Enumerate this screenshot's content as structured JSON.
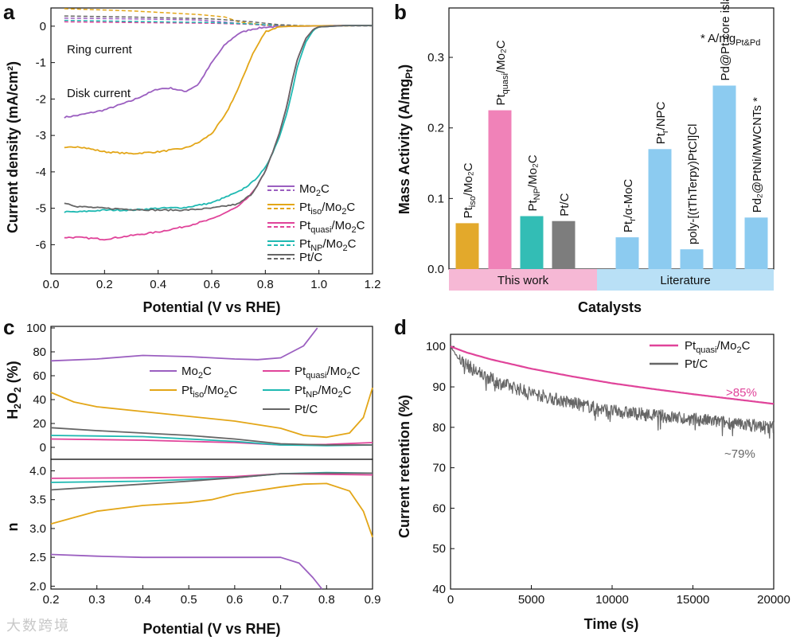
{
  "colors": {
    "mo2c": "#9b5fc0",
    "pt_iso": "#e3a618",
    "pt_quasi": "#e0449a",
    "pt_np": "#1fb9b2",
    "ptc": "#666666",
    "bar_orange": "#e3a92b",
    "bar_pink": "#f082b8",
    "bar_teal": "#33bdb5",
    "bar_gray": "#7d7d7d",
    "bar_blue": "#8ccbf0",
    "band_pink": "#f6b8d5",
    "band_blue": "#b9e0f6"
  },
  "watermark": "大数跨境",
  "chart_data": [
    {
      "panel": "a",
      "type": "line",
      "xlabel": "Potential (V vs RHE)",
      "ylabel": "Current density (mA/cm²)",
      "xlim": [
        0.0,
        1.2
      ],
      "ylim": [
        -6.8,
        0.5
      ],
      "xticks": [
        "0.0",
        "0.2",
        "0.4",
        "0.6",
        "0.8",
        "1.0",
        "1.2"
      ],
      "yticks": [
        "0",
        "-1",
        "-2",
        "-3",
        "-4",
        "-5",
        "-6"
      ],
      "annotations": [
        "Ring current",
        "Disk current"
      ],
      "legend": [
        "Mo₂C",
        "Pt_iso/Mo₂C",
        "Pt_quasi/Mo₂C",
        "Pt_NP/Mo₂C",
        "Pt/C"
      ],
      "series": [
        {
          "name": "Mo₂C",
          "x": [
            0.05,
            0.1,
            0.2,
            0.3,
            0.4,
            0.45,
            0.5,
            0.55,
            0.6,
            0.65,
            0.7,
            0.75,
            0.8,
            0.85,
            0.9,
            0.95,
            1.0,
            1.1,
            1.2
          ],
          "y": [
            -2.5,
            -2.45,
            -2.3,
            -2.05,
            -1.72,
            -1.7,
            -1.8,
            -1.6,
            -1.0,
            -0.5,
            -0.2,
            -0.08,
            -0.03,
            -0.01,
            0.0,
            0.0,
            0.01,
            0.02,
            0.02
          ]
        },
        {
          "name": "Pt_iso/Mo₂C",
          "x": [
            0.05,
            0.1,
            0.2,
            0.3,
            0.4,
            0.5,
            0.55,
            0.6,
            0.65,
            0.7,
            0.75,
            0.8,
            0.85,
            0.9,
            1.0,
            1.2
          ],
          "y": [
            -3.35,
            -3.3,
            -3.45,
            -3.5,
            -3.45,
            -3.35,
            -3.2,
            -2.95,
            -2.45,
            -1.7,
            -0.8,
            -0.15,
            -0.02,
            0.0,
            0.01,
            0.02
          ]
        },
        {
          "name": "Pt_quasi/Mo₂C",
          "x": [
            0.05,
            0.1,
            0.2,
            0.3,
            0.4,
            0.5,
            0.6,
            0.7,
            0.75,
            0.8,
            0.85,
            0.88,
            0.9,
            0.92,
            0.95,
            0.98,
            1.0,
            1.1,
            1.2
          ],
          "y": [
            -5.8,
            -5.8,
            -5.85,
            -5.75,
            -5.65,
            -5.5,
            -5.3,
            -4.95,
            -4.6,
            -4.0,
            -3.0,
            -2.2,
            -1.5,
            -0.9,
            -0.35,
            -0.08,
            -0.02,
            0.02,
            0.02
          ]
        },
        {
          "name": "Pt_NP/Mo₂C",
          "x": [
            0.05,
            0.1,
            0.2,
            0.3,
            0.4,
            0.5,
            0.6,
            0.7,
            0.75,
            0.8,
            0.85,
            0.88,
            0.9,
            0.92,
            0.95,
            0.98,
            1.0,
            1.1,
            1.2
          ],
          "y": [
            -5.1,
            -5.1,
            -5.05,
            -5.05,
            -5.0,
            -4.98,
            -4.85,
            -4.55,
            -4.3,
            -3.9,
            -3.1,
            -2.4,
            -1.8,
            -1.1,
            -0.45,
            -0.1,
            -0.02,
            0.02,
            0.02
          ]
        },
        {
          "name": "Pt/C",
          "x": [
            0.05,
            0.1,
            0.2,
            0.3,
            0.4,
            0.5,
            0.6,
            0.7,
            0.75,
            0.8,
            0.85,
            0.88,
            0.9,
            0.92,
            0.95,
            0.98,
            1.0,
            1.1,
            1.2
          ],
          "y": [
            -4.85,
            -4.95,
            -5.0,
            -5.03,
            -5.05,
            -5.05,
            -5.0,
            -4.88,
            -4.6,
            -4.0,
            -3.0,
            -2.2,
            -1.5,
            -0.9,
            -0.35,
            -0.08,
            -0.02,
            0.02,
            0.02
          ]
        }
      ],
      "ring_series": [
        {
          "name": "Mo₂C",
          "x": [
            0.05,
            0.3,
            0.55,
            0.7,
            0.8,
            0.9,
            1.2
          ],
          "y": [
            0.22,
            0.2,
            0.17,
            0.08,
            0.02,
            0.01,
            0.01
          ]
        },
        {
          "name": "Pt_iso/Mo₂C",
          "x": [
            0.05,
            0.3,
            0.55,
            0.65,
            0.7,
            0.8,
            0.9,
            1.2
          ],
          "y": [
            0.48,
            0.42,
            0.32,
            0.25,
            0.12,
            0.03,
            0.01,
            0.01
          ]
        },
        {
          "name": "Pt_quasi/Mo₂C",
          "x": [
            0.05,
            0.3,
            0.6,
            0.75,
            0.85,
            0.95,
            1.2
          ],
          "y": [
            0.12,
            0.1,
            0.08,
            0.05,
            0.02,
            0.01,
            0.01
          ]
        },
        {
          "name": "Pt_NP/Mo₂C",
          "x": [
            0.05,
            0.3,
            0.6,
            0.75,
            0.85,
            0.95,
            1.2
          ],
          "y": [
            0.16,
            0.13,
            0.1,
            0.06,
            0.02,
            0.01,
            0.01
          ]
        },
        {
          "name": "Pt/C",
          "x": [
            0.05,
            0.3,
            0.6,
            0.75,
            0.85,
            0.95,
            1.2
          ],
          "y": [
            0.28,
            0.25,
            0.2,
            0.12,
            0.04,
            0.01,
            0.01
          ]
        }
      ]
    },
    {
      "panel": "b",
      "type": "bar",
      "xlabel": "Catalysts",
      "ylabel": "Mass Activity (A/mg_Pt)",
      "ylim": [
        0.0,
        0.37
      ],
      "yticks": [
        "0.0",
        "0.1",
        "0.2",
        "0.3"
      ],
      "note": "* A/mg",
      "note_sub": "Pt&Pd",
      "groups": [
        "This work",
        "Literature"
      ],
      "categories": [
        "Pt_iso/Mo₂C",
        "Pt_quasi/Mo₂C",
        "Pt_NP/Mo₂C",
        "Pt/C",
        "Pt_r/α-MoC",
        "Pt_r/NPC",
        "poly-[(tThTerpy)PtCl]Cl",
        "Pd@Pt core island shell *",
        "Pd₂@PtNi/MWCNTs *"
      ],
      "values": [
        0.065,
        0.225,
        0.075,
        0.068,
        0.045,
        0.17,
        0.028,
        0.26,
        0.073
      ]
    },
    {
      "panel": "c",
      "type": "line",
      "xlabel": "Potential (V vs RHE)",
      "xlim": [
        0.2,
        0.9
      ],
      "xticks": [
        "0.2",
        "0.3",
        "0.4",
        "0.5",
        "0.6",
        "0.7",
        "0.8",
        "0.9"
      ],
      "top": {
        "ylabel": "H₂O₂ (%)",
        "ylim": [
          -10,
          100
        ],
        "yticks": [
          "0",
          "20",
          "40",
          "60",
          "80",
          "100"
        ],
        "series": [
          {
            "name": "Mo₂C",
            "x": [
              0.2,
              0.3,
              0.4,
              0.5,
              0.6,
              0.65,
              0.7,
              0.75,
              0.78
            ],
            "y": [
              72.5,
              74,
              77,
              76,
              74,
              73.5,
              75,
              85,
              100
            ]
          },
          {
            "name": "Pt_iso/Mo₂C",
            "x": [
              0.2,
              0.25,
              0.3,
              0.4,
              0.5,
              0.6,
              0.7,
              0.75,
              0.8,
              0.85,
              0.88,
              0.9
            ],
            "y": [
              46,
              38,
              34,
              30,
              26,
              22,
              16,
              10,
              8.5,
              12,
              25,
              50
            ]
          },
          {
            "name": "Pt_quasi/Mo₂C",
            "x": [
              0.2,
              0.4,
              0.6,
              0.7,
              0.8,
              0.9
            ],
            "y": [
              7,
              6,
              4,
              2,
              2.5,
              4
            ]
          },
          {
            "name": "Pt_NP/Mo₂C",
            "x": [
              0.2,
              0.4,
              0.6,
              0.7,
              0.8,
              0.9
            ],
            "y": [
              10,
              9,
              5,
              2,
              1.5,
              2
            ]
          },
          {
            "name": "Pt/C",
            "x": [
              0.2,
              0.3,
              0.4,
              0.5,
              0.6,
              0.7,
              0.8,
              0.9
            ],
            "y": [
              16.5,
              14,
              12,
              10,
              7,
              3,
              2,
              2
            ]
          }
        ]
      },
      "bottom": {
        "ylabel": "n",
        "ylim": [
          1.95,
          4.2
        ],
        "yticks": [
          "2.0",
          "2.5",
          "3.0",
          "3.5",
          "4.0"
        ],
        "series": [
          {
            "name": "Mo₂C",
            "x": [
              0.2,
              0.3,
              0.4,
              0.5,
              0.6,
              0.7,
              0.74,
              0.77,
              0.79
            ],
            "y": [
              2.55,
              2.52,
              2.5,
              2.5,
              2.5,
              2.5,
              2.4,
              2.15,
              1.95
            ]
          },
          {
            "name": "Pt_iso/Mo₂C",
            "x": [
              0.2,
              0.3,
              0.4,
              0.5,
              0.55,
              0.6,
              0.7,
              0.75,
              0.8,
              0.85,
              0.88,
              0.9
            ],
            "y": [
              3.08,
              3.3,
              3.4,
              3.45,
              3.5,
              3.6,
              3.72,
              3.77,
              3.78,
              3.65,
              3.3,
              2.85
            ]
          },
          {
            "name": "Pt_quasi/Mo₂C",
            "x": [
              0.2,
              0.4,
              0.6,
              0.7,
              0.8,
              0.9
            ],
            "y": [
              3.87,
              3.88,
              3.9,
              3.95,
              3.94,
              3.93
            ]
          },
          {
            "name": "Pt_NP/Mo₂C",
            "x": [
              0.2,
              0.4,
              0.6,
              0.7,
              0.8,
              0.9
            ],
            "y": [
              3.8,
              3.82,
              3.88,
              3.95,
              3.97,
              3.96
            ]
          },
          {
            "name": "Pt/C",
            "x": [
              0.2,
              0.3,
              0.4,
              0.5,
              0.6,
              0.7,
              0.8,
              0.9
            ],
            "y": [
              3.67,
              3.72,
              3.77,
              3.82,
              3.88,
              3.95,
              3.96,
              3.96
            ]
          }
        ]
      },
      "legend": [
        "Mo₂C",
        "Pt_quasi/Mo₂C",
        "Pt_iso/Mo₂C",
        "Pt_NP/Mo₂C",
        "Pt/C"
      ]
    },
    {
      "panel": "d",
      "type": "line",
      "xlabel": "Time (s)",
      "ylabel": "Current retention (%)",
      "xlim": [
        0,
        20000
      ],
      "ylim": [
        40,
        103
      ],
      "xticks": [
        "0",
        "5000",
        "10000",
        "15000",
        "20000"
      ],
      "yticks": [
        "40",
        "50",
        "60",
        "70",
        "80",
        "90",
        "100"
      ],
      "legend": [
        "Pt_quasi/Mo₂C",
        "Pt/C"
      ],
      "annotations": [
        ">85%",
        "~79%"
      ],
      "series": [
        {
          "name": "Pt_quasi/Mo₂C",
          "x": [
            0,
            1000,
            2500,
            5000,
            7500,
            10000,
            12500,
            15000,
            17500,
            20000
          ],
          "y": [
            100,
            98.5,
            96.8,
            94.5,
            92.6,
            90.9,
            89.5,
            88.2,
            87,
            85.8
          ]
        },
        {
          "name": "Pt/C",
          "x": [
            0,
            500,
            1500,
            3000,
            5000,
            7500,
            10000,
            12500,
            15000,
            17500,
            20000
          ],
          "y": [
            100,
            97,
            94,
            91,
            88.5,
            86,
            84,
            83,
            82,
            81,
            80
          ]
        }
      ]
    }
  ]
}
